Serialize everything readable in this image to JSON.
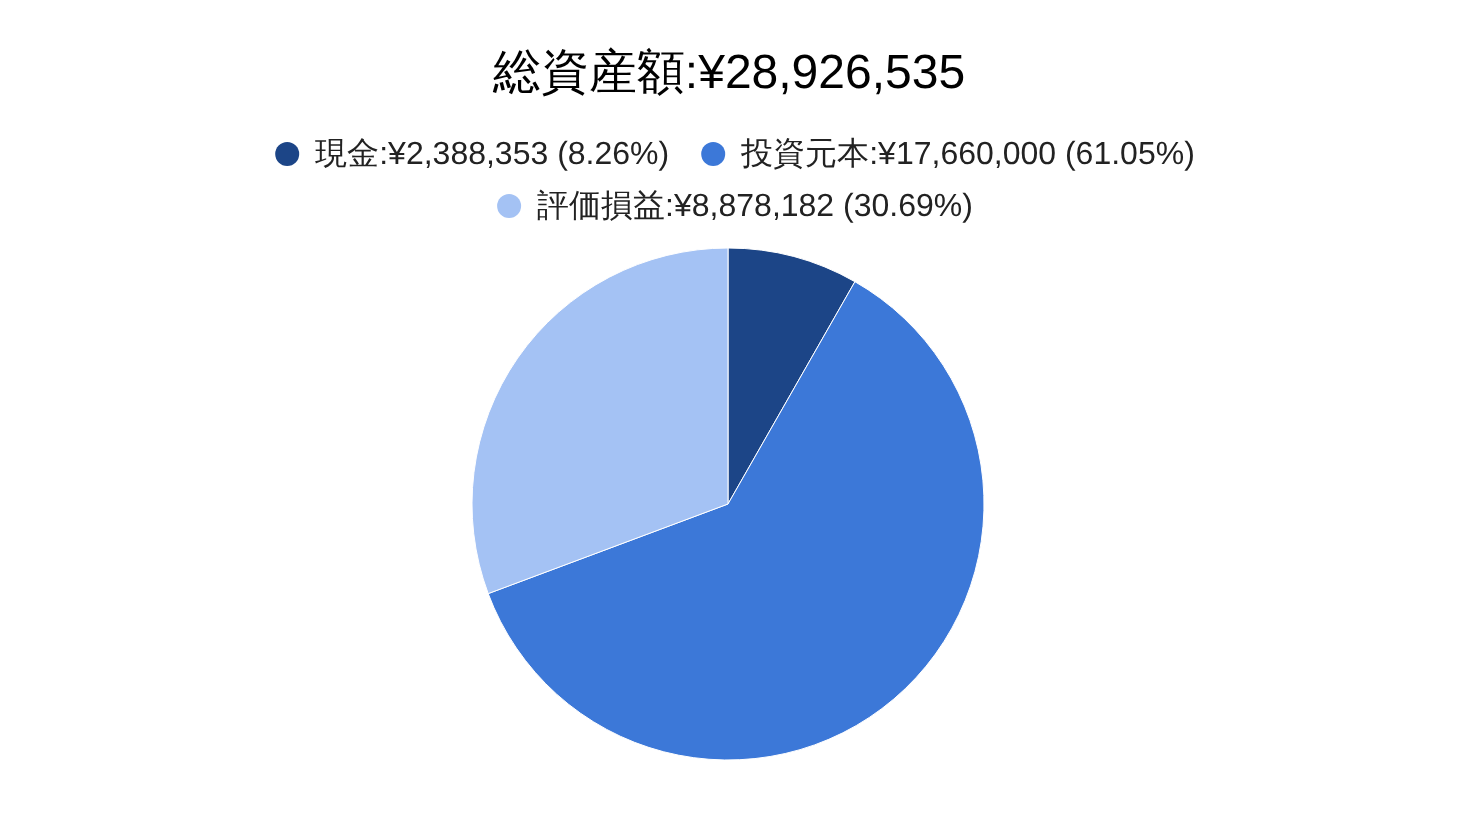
{
  "chart_data": {
    "type": "pie",
    "title": "総資産額:¥28,926,535",
    "categories": [
      "現金:¥2,388,353 (8.26%)",
      "投資元本:¥17,660,000 (61.05%)",
      "評価損益:¥8,878,182 (30.69%)"
    ],
    "values": [
      2388353,
      17660000,
      8878182
    ],
    "colors": [
      "#1c4587",
      "#3c78d8",
      "#a4c2f4"
    ],
    "legend": "top"
  }
}
